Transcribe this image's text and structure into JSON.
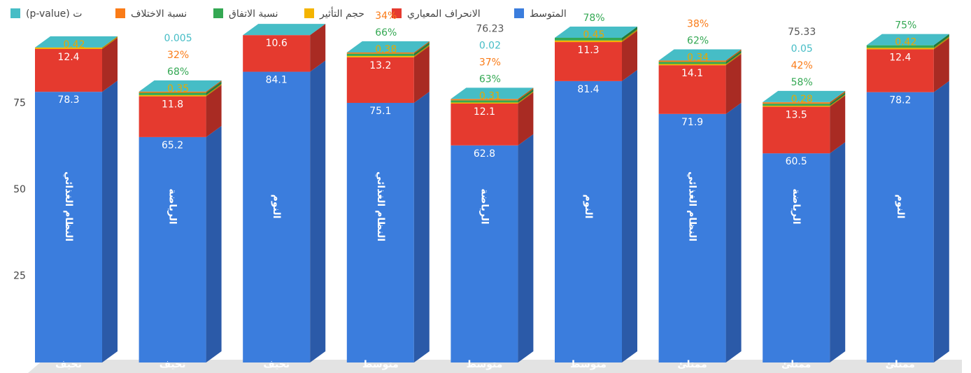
{
  "chart_data": {
    "type": "bar3d_stacked",
    "categories": [
      "نحيف",
      "نحيف",
      "نحيف",
      "متوسط",
      "متوسط",
      "متوسط",
      "ممتلئ",
      "ممتلئ",
      "ممتلئ"
    ],
    "subcategories": [
      "النظام الغذائي",
      "الرياضة",
      "النوم",
      "النظام الغذائي",
      "الرياضة",
      "النوم",
      "النظام الغذائي",
      "الرياضة",
      "النوم"
    ],
    "series": [
      {
        "name": "المتوسط",
        "color": "#3b7ddd",
        "side": "#2b5aa8",
        "values": [
          78.3,
          65.2,
          84.1,
          75.1,
          62.8,
          81.4,
          71.9,
          60.5,
          78.2
        ]
      },
      {
        "name": "الانحراف المعياري",
        "color": "#e53a2f",
        "side": "#a92b23",
        "values": [
          12.4,
          11.8,
          10.6,
          13.2,
          12.1,
          11.3,
          14.1,
          13.5,
          12.4
        ]
      },
      {
        "name": "حجم التأثير",
        "color": "#f4b400",
        "side": "#b88700",
        "values": [
          0.42,
          0.35,
          null,
          0.38,
          0.31,
          0.45,
          0.34,
          0.28,
          0.42
        ]
      },
      {
        "name": "نسبة الاتفاق",
        "color": "#34a853",
        "side": "#22783a",
        "values": [
          null,
          0.68,
          null,
          0.66,
          0.63,
          0.78,
          0.62,
          0.58,
          0.75
        ],
        "value_labels": [
          null,
          "68%",
          null,
          "66%",
          "63%",
          "78%",
          "62%",
          "58%",
          "75%"
        ]
      },
      {
        "name": "نسبة الاختلاف",
        "color": "#fa7b17",
        "side": "#b85a10",
        "values": [
          null,
          0.32,
          null,
          0.34,
          0.37,
          null,
          0.38,
          0.42,
          null
        ],
        "value_labels": [
          null,
          "32%",
          null,
          "34%",
          "37%",
          null,
          "38%",
          "42%",
          null
        ]
      },
      {
        "name": "(p-value) ت",
        "color": "#46bdc6",
        "side": "#2f8a91",
        "values": [
          null,
          0.005,
          null,
          null,
          0.02,
          null,
          null,
          0.05,
          null
        ]
      }
    ],
    "top_values": [
      null,
      null,
      null,
      null,
      76.23,
      null,
      null,
      75.33,
      null
    ],
    "ylim": [
      0,
      100
    ],
    "yticks": [
      25,
      50,
      75
    ]
  }
}
